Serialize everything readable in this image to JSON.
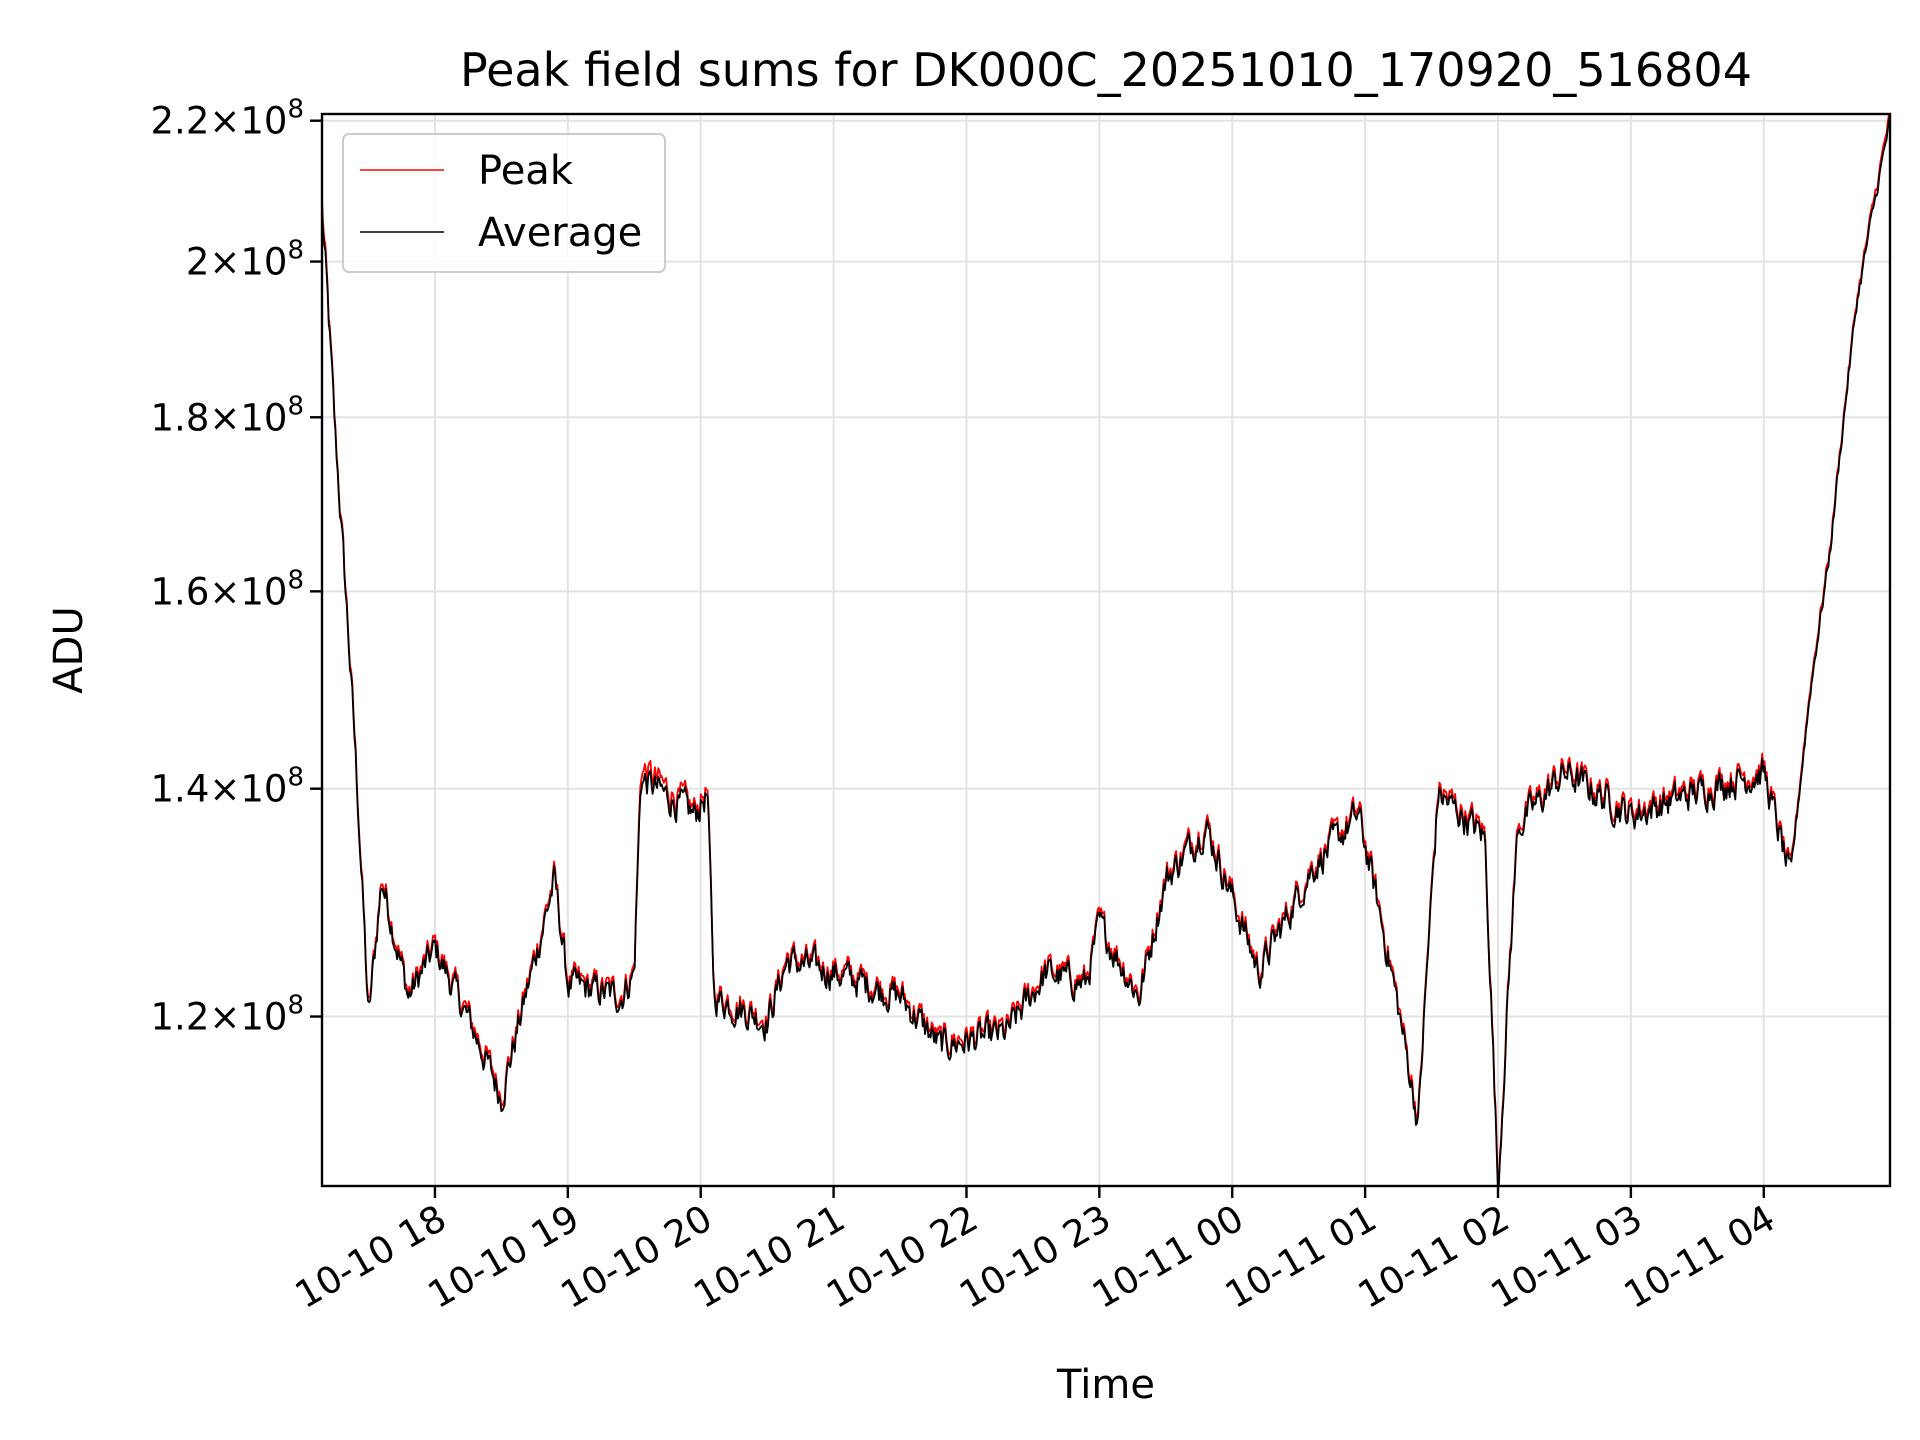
{
  "chart_data": {
    "type": "line",
    "title": "Peak field sums for DK000C_20251010_170920_516804",
    "xlabel": "Time",
    "ylabel": "ADU",
    "yscale": "log",
    "ylim": [
      107000000,
      221000000
    ],
    "xlim_hours": [
      17.15,
      4.95
    ],
    "grid": true,
    "legend_position": "upper-left",
    "x_ticks": [
      "10-10 18",
      "10-10 19",
      "10-10 20",
      "10-10 21",
      "10-10 22",
      "10-10 23",
      "10-11 00",
      "10-11 01",
      "10-11 02",
      "10-11 03",
      "10-11 04"
    ],
    "y_ticks": [
      {
        "value": 120000000,
        "mantissa": "1.2",
        "exponent": "8"
      },
      {
        "value": 140000000,
        "mantissa": "1.4",
        "exponent": "8"
      },
      {
        "value": 160000000,
        "mantissa": "1.6",
        "exponent": "8"
      },
      {
        "value": 180000000,
        "mantissa": "1.8",
        "exponent": "8"
      },
      {
        "value": 200000000,
        "mantissa": "2",
        "exponent": "8"
      },
      {
        "value": 220000000,
        "mantissa": "2.2",
        "exponent": "8"
      }
    ],
    "series": [
      {
        "name": "Peak",
        "color": "#ff0000",
        "note": "tracks Average closely, slightly higher (~0.3%)",
        "x_hours": [
          17.15,
          17.25,
          17.4,
          17.5,
          17.6,
          17.8,
          18.0,
          18.3,
          18.5,
          18.75,
          18.9,
          19.0,
          19.4,
          19.5,
          19.55,
          19.95,
          20.05,
          20.1,
          20.5,
          20.65,
          21.0,
          21.5,
          21.8,
          22.3,
          22.6,
          22.9,
          23.0,
          23.3,
          23.5,
          23.8,
          24.2,
          24.6,
          24.95,
          25.2,
          25.4,
          25.55,
          25.9,
          26.0,
          26.15,
          26.5,
          27.0,
          27.7,
          28.0,
          28.2,
          28.35,
          28.5,
          28.7,
          28.95
        ],
        "values": [
          208000000,
          178000000,
          144000000,
          120000000,
          132000000,
          122000000,
          126000000,
          119000000,
          114000000,
          125000000,
          132000000,
          123000000,
          122000000,
          124000000,
          142000000,
          138000000,
          140000000,
          122000000,
          120000000,
          125000000,
          124000000,
          122000000,
          118000000,
          119000000,
          124000000,
          123000000,
          128000000,
          122000000,
          132000000,
          137000000,
          124000000,
          133000000,
          138000000,
          124000000,
          112000000,
          140000000,
          136000000,
          107000000,
          137000000,
          142000000,
          138000000,
          141000000,
          142000000,
          132000000,
          150000000,
          165000000,
          195000000,
          221000000
        ]
      },
      {
        "name": "Average",
        "color": "#000000",
        "x_hours": [
          17.15,
          17.25,
          17.4,
          17.5,
          17.6,
          17.8,
          18.0,
          18.3,
          18.5,
          18.75,
          18.9,
          19.0,
          19.4,
          19.5,
          19.55,
          19.95,
          20.05,
          20.1,
          20.5,
          20.65,
          21.0,
          21.5,
          21.8,
          22.3,
          22.6,
          22.9,
          23.0,
          23.3,
          23.5,
          23.8,
          24.2,
          24.6,
          24.95,
          25.2,
          25.4,
          25.55,
          25.9,
          26.0,
          26.15,
          26.5,
          27.0,
          27.7,
          28.0,
          28.2,
          28.35,
          28.5,
          28.7,
          28.95
        ],
        "values": [
          207000000,
          177500000,
          143500000,
          119600000,
          131600000,
          121600000,
          125600000,
          118600000,
          113600000,
          124600000,
          131600000,
          122600000,
          121600000,
          123600000,
          141000000,
          137500000,
          139500000,
          121600000,
          119600000,
          124600000,
          123600000,
          121600000,
          117600000,
          118600000,
          123600000,
          122600000,
          127600000,
          121600000,
          131600000,
          136500000,
          123600000,
          132600000,
          137500000,
          123600000,
          111600000,
          139500000,
          135500000,
          106600000,
          136500000,
          141500000,
          137500000,
          140500000,
          141500000,
          131600000,
          149500000,
          164500000,
          194500000,
          220000000
        ]
      }
    ]
  }
}
